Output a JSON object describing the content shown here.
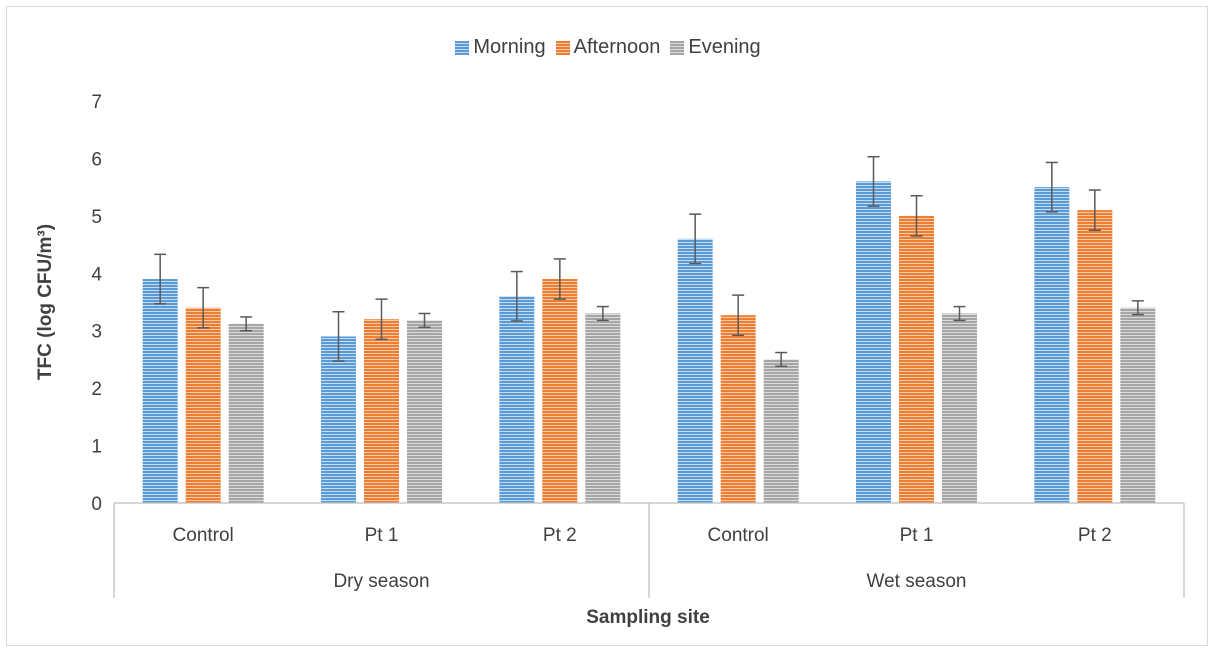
{
  "chart_data": {
    "type": "bar",
    "xlabel": "Sampling site",
    "ylabel": "TFC (log CFU/m³)",
    "ylim": [
      0,
      7
    ],
    "yticks": [
      0,
      1,
      2,
      3,
      4,
      5,
      6,
      7
    ],
    "grid": false,
    "legend_position": "top-center",
    "categories": [
      "Control",
      "Pt 1",
      "Pt 2",
      "Control",
      "Pt 1",
      "Pt 2"
    ],
    "groups": [
      {
        "label": "Dry season",
        "categories": [
          "Control",
          "Pt 1",
          "Pt 2"
        ]
      },
      {
        "label": "Wet season",
        "categories": [
          "Control",
          "Pt 1",
          "Pt 2"
        ]
      }
    ],
    "series": [
      {
        "name": "Morning",
        "color": "#5b9bd5",
        "values": [
          3.9,
          2.9,
          3.6,
          4.6,
          5.6,
          5.5
        ],
        "errors": [
          0.43,
          0.43,
          0.43,
          0.43,
          0.43,
          0.43
        ]
      },
      {
        "name": "Afternoon",
        "color": "#ed7d31",
        "values": [
          3.4,
          3.2,
          3.9,
          3.27,
          5.0,
          5.1
        ],
        "errors": [
          0.35,
          0.35,
          0.35,
          0.35,
          0.35,
          0.35
        ]
      },
      {
        "name": "Evening",
        "color": "#a5a5a5",
        "values": [
          3.12,
          3.18,
          3.3,
          2.5,
          3.3,
          3.4
        ],
        "errors": [
          0.12,
          0.12,
          0.12,
          0.12,
          0.12,
          0.12
        ]
      }
    ]
  }
}
